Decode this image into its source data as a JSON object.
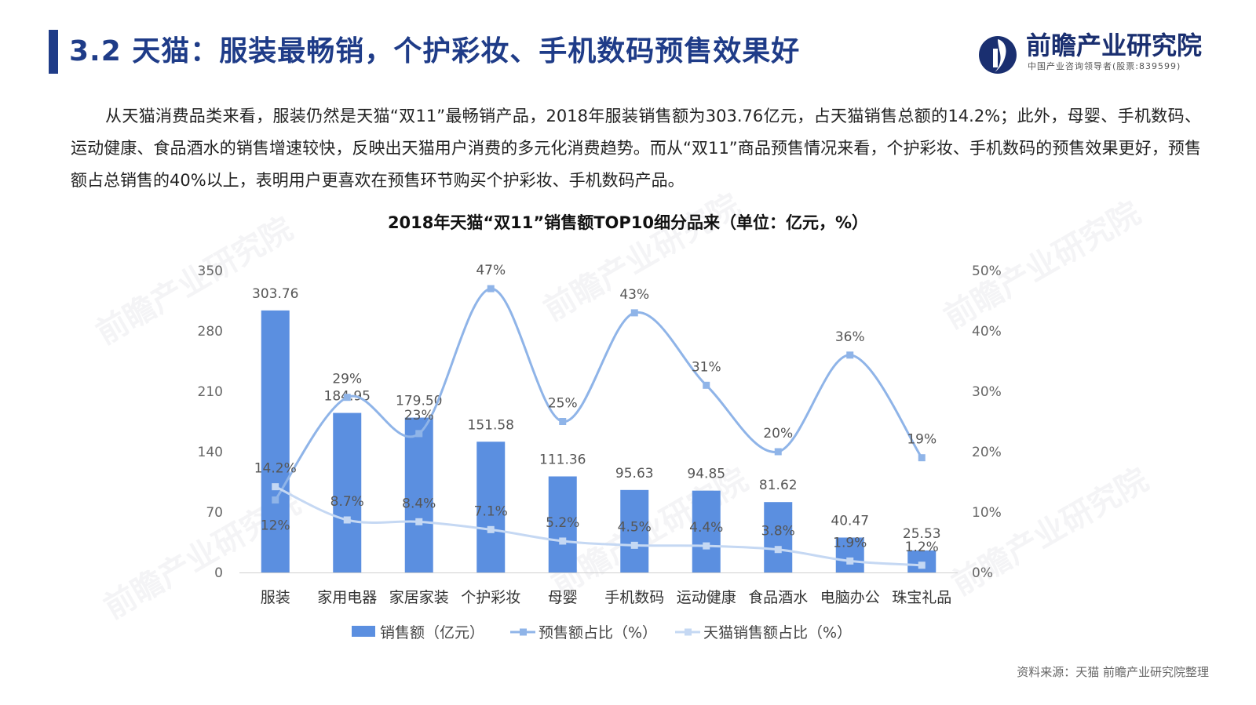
{
  "header": {
    "title": "3.2 天猫：服装最畅销，个护彩妆、手机数码预售效果好",
    "accent_color": "#1f3c88"
  },
  "logo": {
    "name": "前瞻产业研究院",
    "sub": "中国产业咨询领导者(股票:839599)",
    "icon": "qianzhan-logo-icon"
  },
  "intro": "从天猫消费品类来看，服装仍然是天猫“双11”最畅销产品，2018年服装销售额为303.76亿元，占天猫销售总额的14.2%；此外，母婴、手机数码、运动健康、食品酒水的销售增速较快，反映出天猫用户消费的多元化消费趋势。而从“双11”商品预售情况来看，个护彩妆、手机数码的预售效果更好，预售额占总销售的40%以上，表明用户更喜欢在预售环节购买个护彩妆、手机数码产品。",
  "chart_data": {
    "type": "bar",
    "title": "2018年天猫“双11”销售额TOP10细分品来（单位：亿元，%）",
    "categories": [
      "服装",
      "家用电器",
      "家居家装",
      "个护彩妆",
      "母婴",
      "手机数码",
      "运动健康",
      "食品酒水",
      "电脑办公",
      "珠宝礼品"
    ],
    "y_left": {
      "ticks": [
        "0",
        "70",
        "140",
        "210",
        "280",
        "350"
      ],
      "ylim": [
        0,
        350
      ]
    },
    "y_right": {
      "ticks": [
        "0%",
        "10%",
        "20%",
        "30%",
        "40%",
        "50%"
      ],
      "ylim": [
        0,
        50
      ]
    },
    "series": [
      {
        "name": "销售额（亿元）",
        "type": "bar",
        "axis": "left",
        "color": "#5b8fe0",
        "values": [
          303.76,
          184.95,
          179.5,
          151.58,
          111.36,
          95.63,
          94.85,
          81.62,
          40.47,
          25.53
        ],
        "labels": [
          "303.76",
          "184.95",
          "179.50",
          "151.58",
          "111.36",
          "95.63",
          "94.85",
          "81.62",
          "40.47",
          "25.53"
        ]
      },
      {
        "name": "预售额占比（%）",
        "type": "line",
        "axis": "right",
        "color": "#8fb4e8",
        "values": [
          12,
          29,
          23,
          47,
          25,
          43,
          31,
          20,
          36,
          19
        ],
        "labels": [
          "12%",
          "29%",
          "23%",
          "47%",
          "25%",
          "43%",
          "31%",
          "20%",
          "36%",
          "19%"
        ]
      },
      {
        "name": "天猫销售额占比（%）",
        "type": "line",
        "axis": "right",
        "color": "#c5d8f3",
        "values": [
          14.2,
          8.7,
          8.4,
          7.1,
          5.2,
          4.5,
          4.4,
          3.8,
          1.9,
          1.2
        ],
        "labels": [
          "14.2%",
          "8.7%",
          "8.4%",
          "7.1%",
          "5.2%",
          "4.5%",
          "4.4%",
          "3.8%",
          "1.9%",
          "1.2%"
        ]
      }
    ],
    "legend_position": "bottom",
    "grid": false
  },
  "source": "资料来源：天猫 前瞻产业研究院整理",
  "watermark": {
    "text": "前瞻产业研究院"
  }
}
